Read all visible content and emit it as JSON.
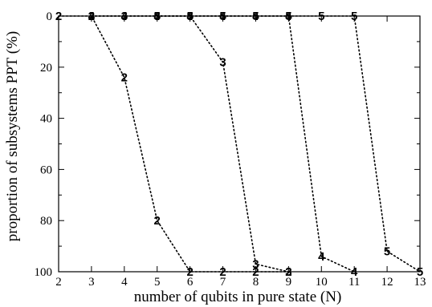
{
  "chart_data": {
    "type": "line",
    "xlabel": "number of qubits in pure state (N)",
    "ylabel": "proportion of subsystems PPT (%)",
    "xlim": [
      2,
      13
    ],
    "ylim": [
      0,
      100
    ],
    "y_inverted": true,
    "grid": false,
    "x_ticks": [
      2,
      3,
      4,
      5,
      6,
      7,
      8,
      9,
      10,
      11,
      12,
      13
    ],
    "y_ticks": [
      0,
      20,
      40,
      60,
      80,
      100
    ],
    "series": [
      {
        "marker": "2",
        "x": [
          2,
          3,
          4,
          5,
          6,
          7,
          8,
          9
        ],
        "y": [
          0,
          0,
          24,
          80,
          100,
          100,
          100,
          100
        ]
      },
      {
        "marker": "3",
        "x": [
          3,
          4,
          5,
          6,
          7,
          8,
          9
        ],
        "y": [
          0,
          0,
          0,
          0,
          18,
          97,
          100
        ]
      },
      {
        "marker": "4",
        "x": [
          3,
          4,
          5,
          6,
          7,
          8,
          9,
          10,
          11
        ],
        "y": [
          0,
          0,
          0,
          0,
          0,
          0,
          0,
          94,
          100
        ]
      },
      {
        "marker": "5",
        "x": [
          5,
          6,
          7,
          8,
          9,
          10,
          11,
          12,
          13
        ],
        "y": [
          0,
          0,
          0,
          0,
          0,
          0,
          0,
          92,
          100
        ]
      }
    ]
  }
}
